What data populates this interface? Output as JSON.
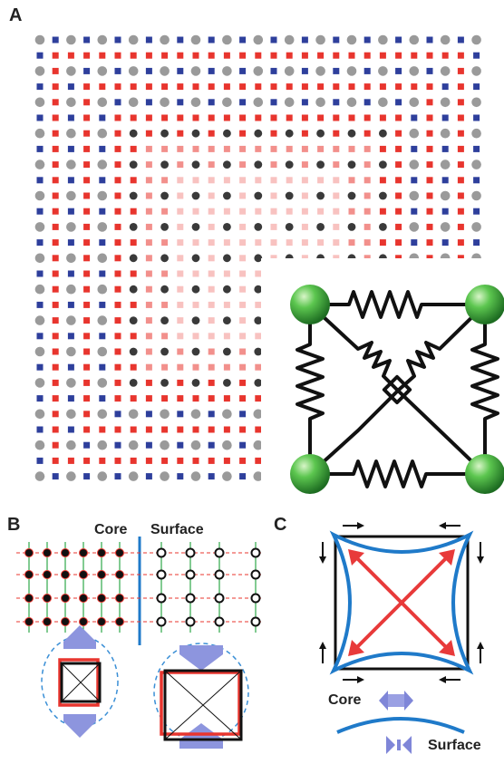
{
  "panels": {
    "a": "A",
    "b": "B",
    "c": "C"
  },
  "panel_b": {
    "core_label": "Core",
    "surface_label": "Surface"
  },
  "panel_c": {
    "core_label": "Core",
    "surface_label": "Surface"
  },
  "colors": {
    "atom_gray": "#9a9a9a",
    "atom_dark": "#3a3a3a",
    "spring_red": "#e8352e",
    "spring_blue": "#2e3f9c",
    "node_green": "#3fae3f",
    "curve_blue": "#1f7ac9",
    "arrow_red": "#e83a3a",
    "arrow_lavender": "#7f86d8"
  }
}
